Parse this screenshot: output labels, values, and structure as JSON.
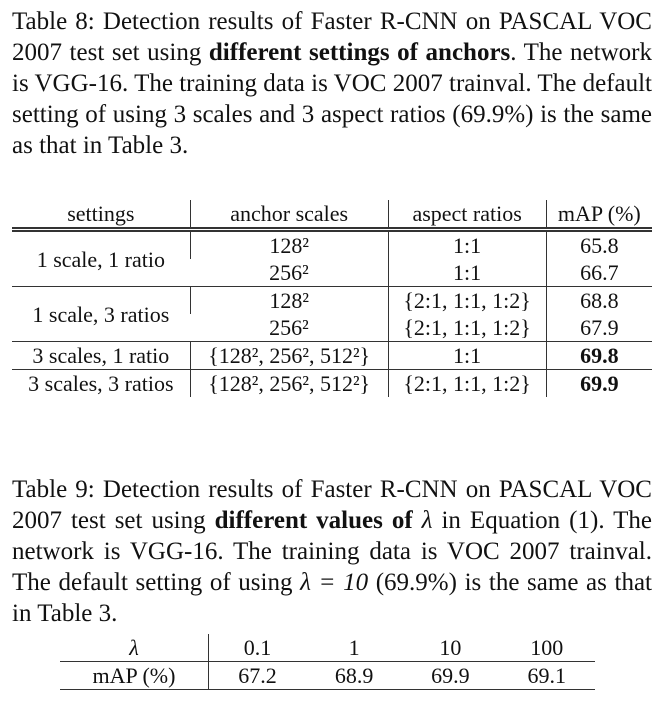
{
  "table8": {
    "caption": [
      "Table 8: Detection results of Faster R-CNN on PASCAL VOC 2007 test set using ",
      "different settings of anchors",
      ". The network is VGG-16. The training data is VOC 2007 trainval. The default setting of using 3 scales and 3 aspect ratios (69.9%) is the same as that in Table 3."
    ],
    "header": [
      "settings",
      "anchor scales",
      "aspect ratios",
      "mAP (%)"
    ],
    "groups": [
      {
        "setting": "1 scale, 1 ratio",
        "rows": [
          [
            "128²",
            "1:1",
            "65.8"
          ],
          [
            "256²",
            "1:1",
            "66.7"
          ]
        ]
      },
      {
        "setting": "1 scale, 3 ratios",
        "rows": [
          [
            "128²",
            "{2:1, 1:1, 1:2}",
            "68.8"
          ],
          [
            "256²",
            "{2:1, 1:1, 1:2}",
            "67.9"
          ]
        ]
      },
      {
        "setting": "3 scales, 1 ratio",
        "rows": [
          [
            "{128², 256², 512²}",
            "1:1",
            "69.8"
          ]
        ],
        "bold": true
      },
      {
        "setting": "3 scales, 3 ratios",
        "rows": [
          [
            "{128², 256², 512²}",
            "{2:1, 1:1, 1:2}",
            "69.9"
          ]
        ],
        "bold": true
      }
    ]
  },
  "table9": {
    "caption": [
      "Table 9: Detection results of Faster R-CNN on PASCAL VOC 2007 test set using ",
      "different values of ",
      "λ",
      " in Equation (1). The network is VGG-16. The training data is VOC 2007 trainval. The default setting of using ",
      "λ = 10",
      " (69.9%) is the same as that in Table 3."
    ],
    "header": [
      "λ",
      "0.1",
      "1",
      "10",
      "100"
    ],
    "row": [
      "mAP (%)",
      "67.2",
      "68.9",
      "69.9",
      "69.1"
    ]
  }
}
